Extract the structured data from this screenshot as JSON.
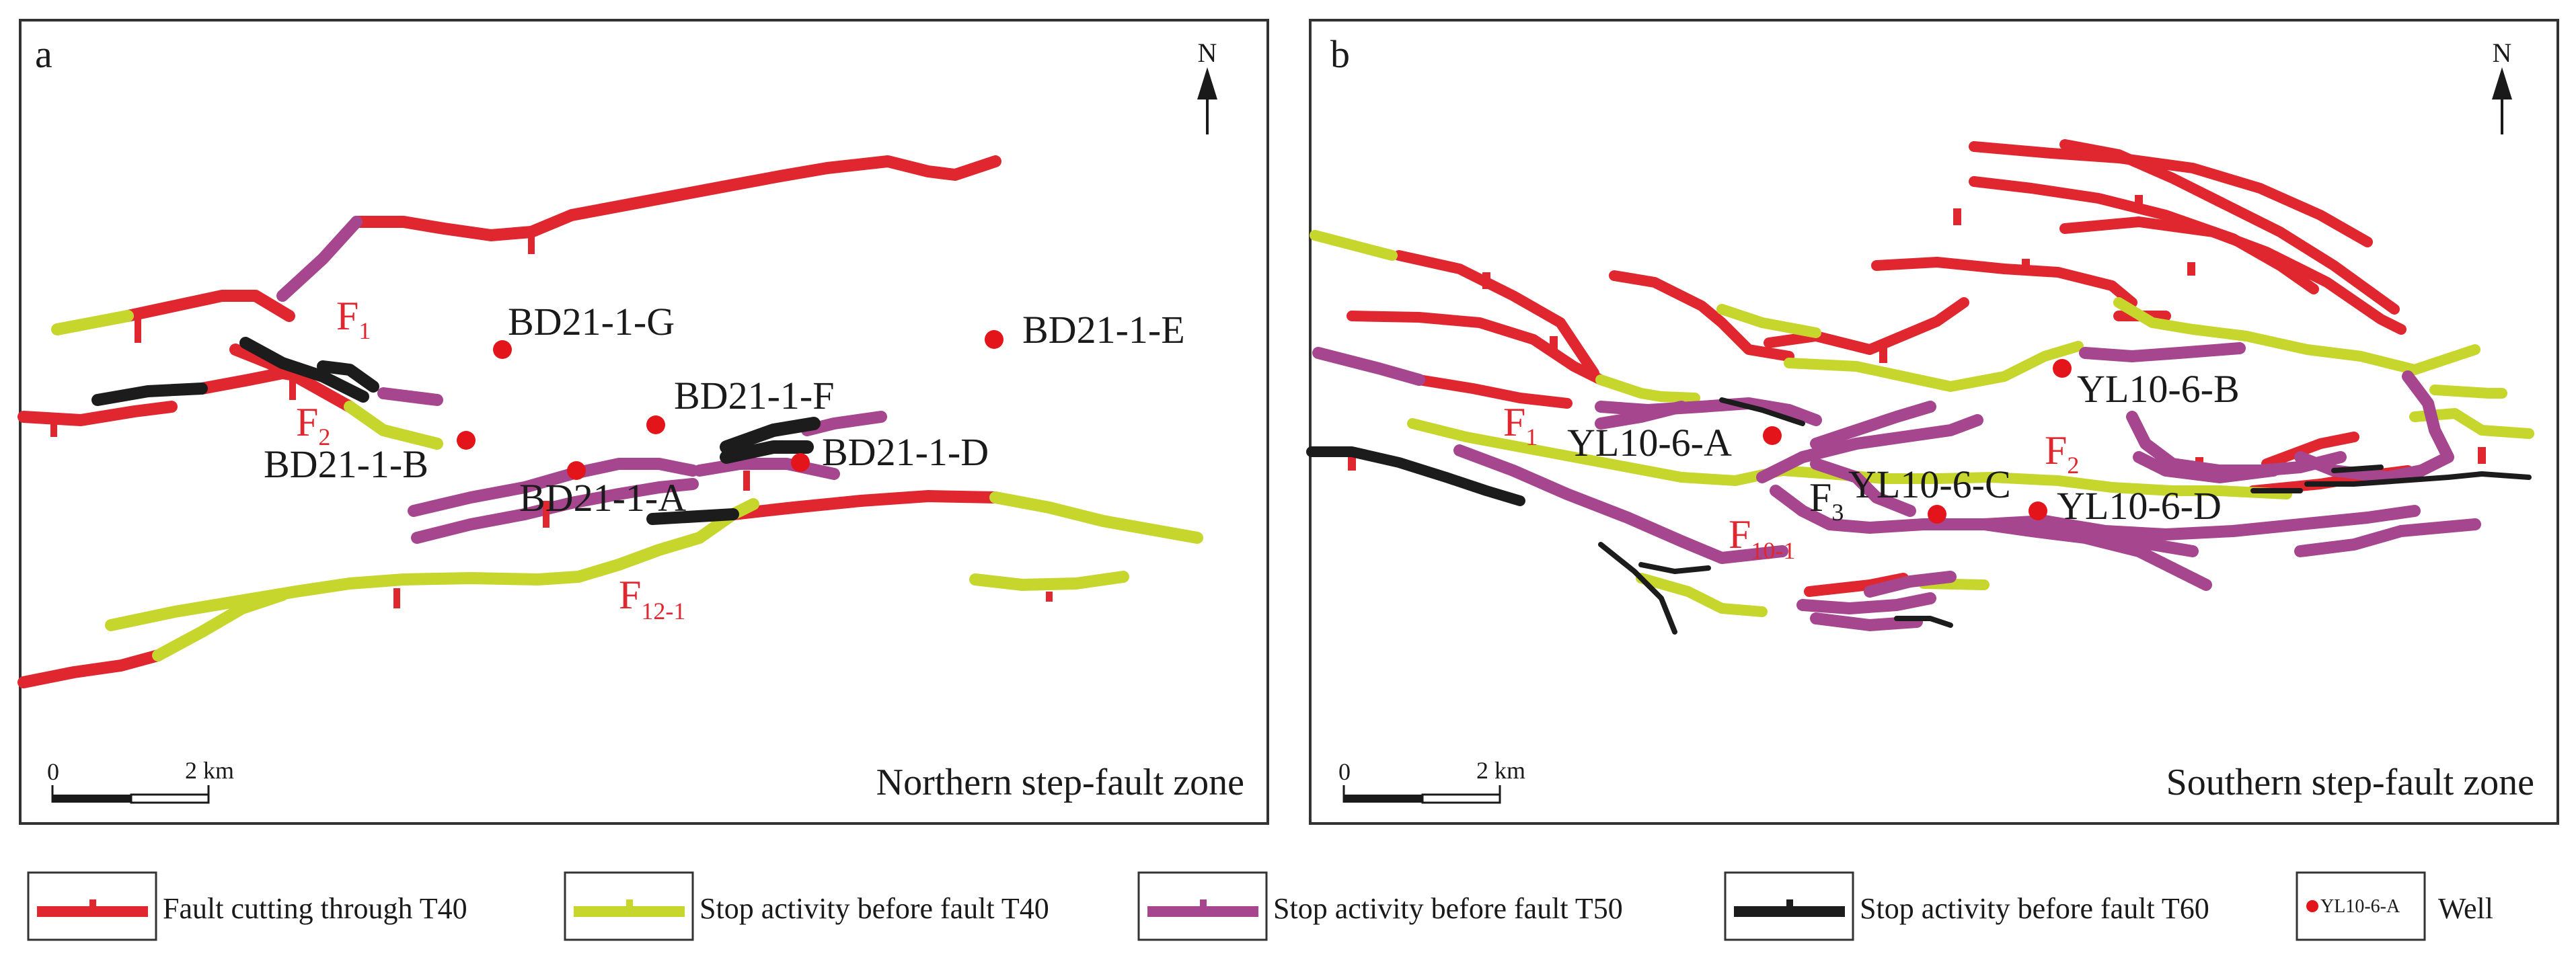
{
  "colors": {
    "t40_cut": "#e0262e",
    "stop_t40": "#c6d62c",
    "stop_t50": "#a6468f",
    "stop_t60": "#1c1c1c",
    "well": "#e4141b"
  },
  "panel_a": {
    "label": "a",
    "zone": "Northern step-fault zone",
    "north": "N",
    "scale": {
      "zero": "0",
      "end": "2 km"
    },
    "wells": [
      "BD21-1-G",
      "BD21-1-E",
      "BD21-1-F",
      "BD21-1-B",
      "BD21-1-D",
      "BD21-1-A"
    ],
    "faults": {
      "f1": "F",
      "f1_sub": "1",
      "f2": "F",
      "f2_sub": "2",
      "f12": "F",
      "f12_sub": "12-1"
    }
  },
  "panel_b": {
    "label": "b",
    "zone": "Southern step-fault zone",
    "north": "N",
    "scale": {
      "zero": "0",
      "end": "2 km"
    },
    "wells": [
      "YL10-6-B",
      "YL10-6-A",
      "YL10-6-C",
      "YL10-6-D"
    ],
    "faults": {
      "f1": "F",
      "f1_sub": "1",
      "f2": "F",
      "f2_sub": "2",
      "f3": "F",
      "f3_sub": "3",
      "f10": "F",
      "f10_sub": "10-1"
    }
  },
  "legend": {
    "items": [
      "Fault cutting through T40",
      "Stop activity before fault T40",
      "Stop activity before fault T50",
      "Stop activity before fault T60"
    ],
    "well_sample": "YL10-6-A",
    "well_label": "Well"
  }
}
